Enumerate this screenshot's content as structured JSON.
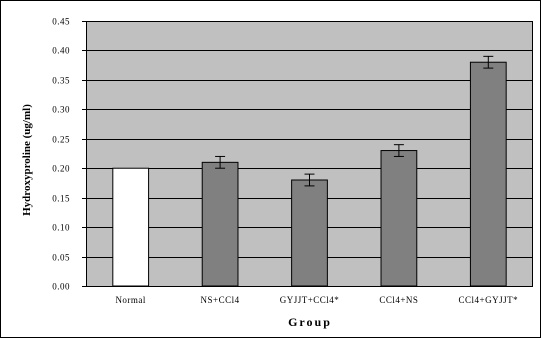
{
  "chart_data": {
    "type": "bar",
    "title": "",
    "xlabel": "Group",
    "ylabel": "Hydroxyproline (ug/ml)",
    "ylim": [
      0,
      0.45
    ],
    "yticks": [
      "0.00",
      "0.05",
      "0.10",
      "0.15",
      "0.20",
      "0.25",
      "0.30",
      "0.35",
      "0.40",
      "0.45"
    ],
    "categories": [
      "Normal",
      "NS+CCl4",
      "GYJJT+CCl4*",
      "CCl4+NS",
      "CCl4+GYJJT*"
    ],
    "values": [
      0.2,
      0.21,
      0.18,
      0.23,
      0.38
    ],
    "errors": [
      0.0,
      0.01,
      0.01,
      0.01,
      0.01
    ],
    "grid": true,
    "legend": "none",
    "colors": {
      "plot_background": "#c0c0c0",
      "bar_first": "#ffffff",
      "bar_other": "#808080",
      "bar_edge": "#000000",
      "grid": "#000000"
    }
  }
}
